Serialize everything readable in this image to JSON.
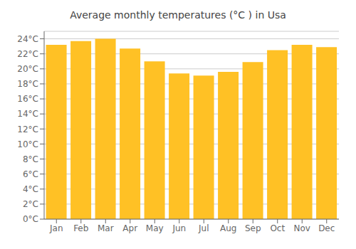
{
  "chart_data": {
    "type": "bar",
    "title": "Average monthly temperatures (°C ) in Usa",
    "categories": [
      "Jan",
      "Feb",
      "Mar",
      "Apr",
      "May",
      "Jun",
      "Jul",
      "Aug",
      "Sep",
      "Oct",
      "Nov",
      "Dec"
    ],
    "values": [
      23.2,
      23.7,
      24.0,
      22.7,
      21.0,
      19.4,
      19.1,
      19.6,
      20.9,
      22.5,
      23.2,
      22.9
    ],
    "color": "#FFC125",
    "ylim": [
      0,
      25
    ],
    "yticks": [
      {
        "value": 0,
        "label": "0°C"
      },
      {
        "value": 2,
        "label": "2°C"
      },
      {
        "value": 4,
        "label": "4°C"
      },
      {
        "value": 6,
        "label": "6°C"
      },
      {
        "value": 8,
        "label": "8°C"
      },
      {
        "value": 10,
        "label": "10°C"
      },
      {
        "value": 12,
        "label": "12°C"
      },
      {
        "value": 14,
        "label": "14°C"
      },
      {
        "value": 16,
        "label": "16°C"
      },
      {
        "value": 18,
        "label": "18°C"
      },
      {
        "value": 20,
        "label": "20°C"
      },
      {
        "value": 22,
        "label": "22°C"
      },
      {
        "value": 24,
        "label": "24°C"
      }
    ],
    "grid": true
  }
}
